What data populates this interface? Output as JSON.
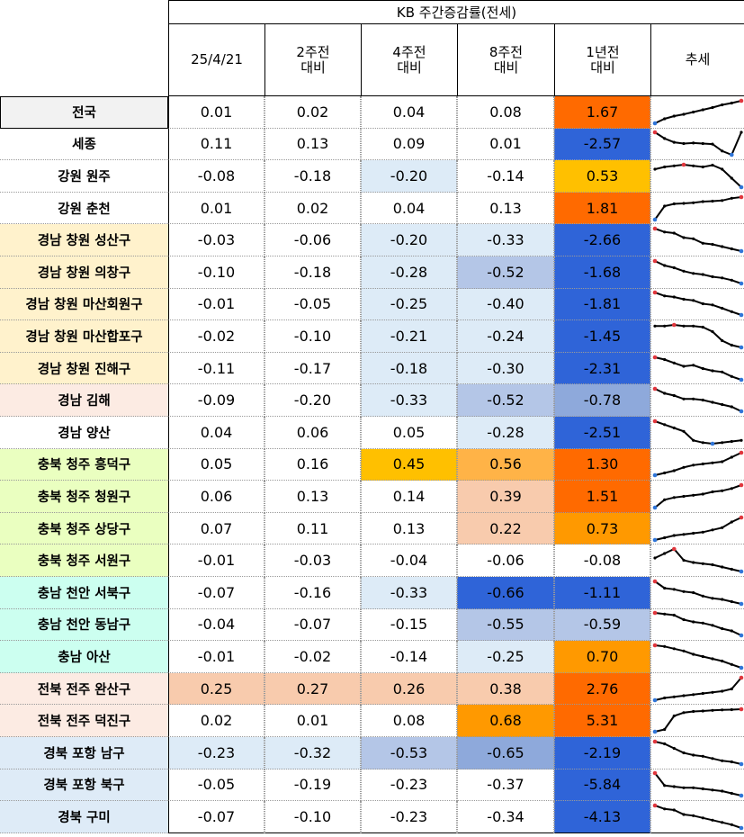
{
  "header": {
    "title": "KB 주간증감률(전세)",
    "columns": [
      [
        "25/4/21"
      ],
      [
        "2주전",
        "대비"
      ],
      [
        "4주전",
        "대비"
      ],
      [
        "8주전",
        "대비"
      ],
      [
        "1년전",
        "대비"
      ],
      [
        "추세"
      ]
    ]
  },
  "colors": {
    "label_groups": {
      "national": "#f2f2f2",
      "none": "#ffffff",
      "gyeongnam_changwon": "#fff2cc",
      "gyeongnam_gimhae": "#fcebe3",
      "chungbuk": "#eaffc0",
      "chungnam": "#ccfff0",
      "jeonbuk": "#fcebe3",
      "gyeongbuk": "#deebf7"
    },
    "value_shades": {
      "none": "#ffffff",
      "light_blue": "#ddebf7",
      "mid_blue": "#b4c6e7",
      "blue_soft": "#8ea9db",
      "blue": "#2f64d8",
      "peach": "#f8cbad",
      "yellow_orange": "#ffc000",
      "light_orange": "#ffb347",
      "orange": "#ff9900",
      "deep_orange": "#ff6a00"
    }
  },
  "rows": [
    {
      "label": "전국",
      "group": "national",
      "values": [
        "0.01",
        "0.02",
        "0.04",
        "0.08",
        "1.67"
      ],
      "shades": [
        "none",
        "none",
        "none",
        "none",
        "deep_orange"
      ],
      "trend": [
        0.0,
        0.2,
        0.32,
        0.4,
        0.5,
        0.6,
        0.7,
        0.82,
        0.9,
        1.0
      ]
    },
    {
      "label": "세종",
      "group": "none",
      "values": [
        "0.11",
        "0.13",
        "0.09",
        "0.01",
        "-2.57"
      ],
      "shades": [
        "none",
        "none",
        "none",
        "none",
        "blue"
      ],
      "trend": [
        0.95,
        0.7,
        0.55,
        0.5,
        0.52,
        0.5,
        0.48,
        0.2,
        0.05,
        0.95
      ]
    },
    {
      "label": "강원 원주",
      "group": "none",
      "values": [
        "-0.08",
        "-0.18",
        "-0.20",
        "-0.14",
        "0.53"
      ],
      "shades": [
        "none",
        "none",
        "light_blue",
        "none",
        "yellow_orange"
      ],
      "trend": [
        0.8,
        0.9,
        0.95,
        1.0,
        0.95,
        0.9,
        0.98,
        0.8,
        0.4,
        0.0
      ]
    },
    {
      "label": "강원 춘천",
      "group": "none",
      "values": [
        "0.01",
        "0.02",
        "0.04",
        "0.13",
        "1.81"
      ],
      "shades": [
        "none",
        "none",
        "none",
        "none",
        "deep_orange"
      ],
      "trend": [
        0.0,
        0.6,
        0.7,
        0.72,
        0.75,
        0.8,
        0.82,
        0.85,
        0.95,
        1.0
      ]
    },
    {
      "label": "경남 창원 성산구",
      "group": "gyeongnam_changwon",
      "values": [
        "-0.03",
        "-0.06",
        "-0.20",
        "-0.33",
        "-2.66"
      ],
      "shades": [
        "none",
        "none",
        "light_blue",
        "light_blue",
        "blue"
      ],
      "trend": [
        1.0,
        0.85,
        0.8,
        0.6,
        0.55,
        0.35,
        0.3,
        0.2,
        0.1,
        0.0
      ]
    },
    {
      "label": "경남 창원 의창구",
      "group": "gyeongnam_changwon",
      "values": [
        "-0.10",
        "-0.18",
        "-0.28",
        "-0.52",
        "-1.68"
      ],
      "shades": [
        "none",
        "none",
        "light_blue",
        "mid_blue",
        "blue"
      ],
      "trend": [
        1.0,
        0.8,
        0.7,
        0.55,
        0.45,
        0.4,
        0.3,
        0.25,
        0.15,
        0.0
      ]
    },
    {
      "label": "경남 창원 마산회원구",
      "group": "gyeongnam_changwon",
      "values": [
        "-0.01",
        "-0.05",
        "-0.25",
        "-0.40",
        "-1.81"
      ],
      "shades": [
        "none",
        "none",
        "light_blue",
        "light_blue",
        "blue"
      ],
      "trend": [
        1.0,
        0.85,
        0.8,
        0.7,
        0.65,
        0.5,
        0.45,
        0.3,
        0.15,
        0.0
      ]
    },
    {
      "label": "경남 창원 마산합포구",
      "group": "gyeongnam_changwon",
      "values": [
        "-0.02",
        "-0.10",
        "-0.21",
        "-0.24",
        "-1.45"
      ],
      "shades": [
        "none",
        "none",
        "light_blue",
        "light_blue",
        "blue"
      ],
      "trend": [
        0.95,
        0.95,
        1.0,
        0.95,
        0.95,
        0.9,
        0.7,
        0.3,
        0.1,
        0.0
      ]
    },
    {
      "label": "경남 창원 진해구",
      "group": "gyeongnam_changwon",
      "values": [
        "-0.11",
        "-0.17",
        "-0.18",
        "-0.30",
        "-2.31"
      ],
      "shades": [
        "none",
        "none",
        "light_blue",
        "light_blue",
        "blue"
      ],
      "trend": [
        1.0,
        0.9,
        0.75,
        0.6,
        0.65,
        0.5,
        0.4,
        0.35,
        0.15,
        0.0
      ]
    },
    {
      "label": "경남 김해",
      "group": "gyeongnam_gimhae",
      "values": [
        "-0.09",
        "-0.20",
        "-0.33",
        "-0.52",
        "-0.78"
      ],
      "shades": [
        "none",
        "none",
        "light_blue",
        "mid_blue",
        "blue_soft"
      ],
      "trend": [
        1.0,
        0.8,
        0.7,
        0.55,
        0.55,
        0.5,
        0.4,
        0.3,
        0.2,
        0.0
      ]
    },
    {
      "label": "경남 양산",
      "group": "none",
      "values": [
        "0.04",
        "0.06",
        "0.05",
        "-0.28",
        "-2.51"
      ],
      "shades": [
        "none",
        "none",
        "none",
        "light_blue",
        "blue"
      ],
      "trend": [
        1.0,
        0.85,
        0.7,
        0.55,
        0.15,
        0.05,
        0.0,
        0.05,
        0.1,
        0.15
      ]
    },
    {
      "label": "충북 청주 흥덕구",
      "group": "chungbuk",
      "values": [
        "0.05",
        "0.16",
        "0.45",
        "0.56",
        "1.30"
      ],
      "shades": [
        "none",
        "none",
        "yellow_orange",
        "light_orange",
        "deep_orange"
      ],
      "trend": [
        0.0,
        0.1,
        0.2,
        0.35,
        0.45,
        0.5,
        0.55,
        0.6,
        0.8,
        1.0
      ]
    },
    {
      "label": "충북 청주 청원구",
      "group": "chungbuk",
      "values": [
        "0.06",
        "0.13",
        "0.14",
        "0.39",
        "1.51"
      ],
      "shades": [
        "none",
        "none",
        "none",
        "peach",
        "deep_orange"
      ],
      "trend": [
        0.0,
        0.35,
        0.45,
        0.5,
        0.55,
        0.6,
        0.7,
        0.75,
        0.85,
        1.0
      ]
    },
    {
      "label": "충북 청주 상당구",
      "group": "chungbuk",
      "values": [
        "0.07",
        "0.11",
        "0.13",
        "0.22",
        "0.73"
      ],
      "shades": [
        "none",
        "none",
        "none",
        "peach",
        "orange"
      ],
      "trend": [
        0.0,
        0.1,
        0.2,
        0.25,
        0.3,
        0.35,
        0.45,
        0.55,
        0.8,
        1.0
      ]
    },
    {
      "label": "충북 청주 서원구",
      "group": "chungbuk",
      "values": [
        "-0.01",
        "-0.03",
        "-0.04",
        "-0.06",
        "-0.08"
      ],
      "shades": [
        "none",
        "none",
        "none",
        "none",
        "none"
      ],
      "trend": [
        0.6,
        0.8,
        1.0,
        0.5,
        0.4,
        0.35,
        0.3,
        0.2,
        0.1,
        0.0
      ]
    },
    {
      "label": "충남 천안 서북구",
      "group": "chungnam",
      "values": [
        "-0.07",
        "-0.16",
        "-0.33",
        "-0.66",
        "-1.11"
      ],
      "shades": [
        "none",
        "none",
        "light_blue",
        "blue",
        "blue"
      ],
      "trend": [
        1.0,
        0.7,
        0.65,
        0.55,
        0.5,
        0.35,
        0.25,
        0.2,
        0.1,
        0.0
      ]
    },
    {
      "label": "충남 천안 동남구",
      "group": "chungnam",
      "values": [
        "-0.04",
        "-0.07",
        "-0.15",
        "-0.55",
        "-0.59"
      ],
      "shades": [
        "none",
        "none",
        "none",
        "mid_blue",
        "mid_blue"
      ],
      "trend": [
        1.0,
        0.95,
        0.9,
        0.7,
        0.6,
        0.55,
        0.45,
        0.3,
        0.2,
        0.0
      ]
    },
    {
      "label": "충남 아산",
      "group": "chungnam",
      "values": [
        "-0.01",
        "-0.02",
        "-0.14",
        "-0.25",
        "0.70"
      ],
      "shades": [
        "none",
        "none",
        "none",
        "light_blue",
        "orange"
      ],
      "trend": [
        1.0,
        0.95,
        0.85,
        0.75,
        0.6,
        0.5,
        0.4,
        0.3,
        0.15,
        0.0
      ]
    },
    {
      "label": "전북 전주 완산구",
      "group": "jeonbuk",
      "values": [
        "0.25",
        "0.27",
        "0.26",
        "0.38",
        "2.76"
      ],
      "shades": [
        "peach",
        "peach",
        "peach",
        "peach",
        "deep_orange"
      ],
      "trend": [
        0.0,
        0.1,
        0.15,
        0.2,
        0.25,
        0.3,
        0.35,
        0.4,
        0.5,
        1.0
      ]
    },
    {
      "label": "전북 전주 덕진구",
      "group": "jeonbuk",
      "values": [
        "0.02",
        "0.01",
        "0.08",
        "0.68",
        "5.31"
      ],
      "shades": [
        "none",
        "none",
        "none",
        "orange",
        "deep_orange"
      ],
      "trend": [
        0.0,
        0.1,
        0.7,
        0.85,
        0.9,
        0.92,
        0.95,
        0.97,
        0.98,
        1.0
      ]
    },
    {
      "label": "경북 포항 남구",
      "group": "gyeongbuk",
      "values": [
        "-0.23",
        "-0.32",
        "-0.53",
        "-0.65",
        "-2.19"
      ],
      "shades": [
        "light_blue",
        "light_blue",
        "mid_blue",
        "blue_soft",
        "blue"
      ],
      "trend": [
        1.0,
        0.9,
        0.7,
        0.5,
        0.4,
        0.35,
        0.25,
        0.15,
        0.1,
        0.0
      ]
    },
    {
      "label": "경북 포항 북구",
      "group": "gyeongbuk",
      "values": [
        "-0.05",
        "-0.19",
        "-0.23",
        "-0.37",
        "-5.84"
      ],
      "shades": [
        "none",
        "none",
        "none",
        "none",
        "blue"
      ],
      "trend": [
        1.0,
        0.45,
        0.4,
        0.35,
        0.35,
        0.3,
        0.25,
        0.2,
        0.1,
        0.0
      ]
    },
    {
      "label": "경북 구미",
      "group": "gyeongbuk",
      "values": [
        "-0.07",
        "-0.10",
        "-0.23",
        "-0.34",
        "-4.13"
      ],
      "shades": [
        "none",
        "none",
        "none",
        "none",
        "blue"
      ],
      "trend": [
        1.0,
        0.85,
        0.8,
        0.6,
        0.55,
        0.45,
        0.35,
        0.25,
        0.15,
        0.0
      ]
    }
  ]
}
